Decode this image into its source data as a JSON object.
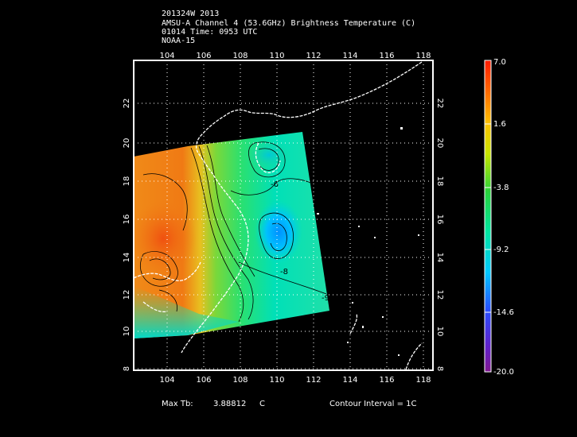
{
  "header": {
    "line1": "201324W 2013",
    "line2": "AMSU-A Channel 4 (53.6GHz) Brightness Temperature (C)",
    "line3": "01014 Time: 0953 UTC",
    "line4": "NOAA-15"
  },
  "map": {
    "lon_ticks": [
      "104",
      "106",
      "108",
      "110",
      "112",
      "114",
      "116",
      "118"
    ],
    "lat_ticks": [
      "8",
      "10",
      "12",
      "14",
      "16",
      "18",
      "20",
      "22"
    ],
    "contour_labels": [
      "-8",
      "-9",
      "-6"
    ]
  },
  "colorbar": {
    "labels": [
      "7.0",
      "1.6",
      "-3.8",
      "-9.2",
      "-14.6",
      "-20.0"
    ],
    "colors": [
      "#ff2a00",
      "#ff8800",
      "#ffd200",
      "#a8e600",
      "#22cc33",
      "#00e6b4",
      "#00c8ff",
      "#2a6cff",
      "#6a2ad0",
      "#8a1aa0"
    ]
  },
  "footer": {
    "max_tb_label": "Max Tb:",
    "max_tb_value": "3.88812",
    "max_tb_unit": "C",
    "contour_interval": "Contour Interval = 1C"
  }
}
